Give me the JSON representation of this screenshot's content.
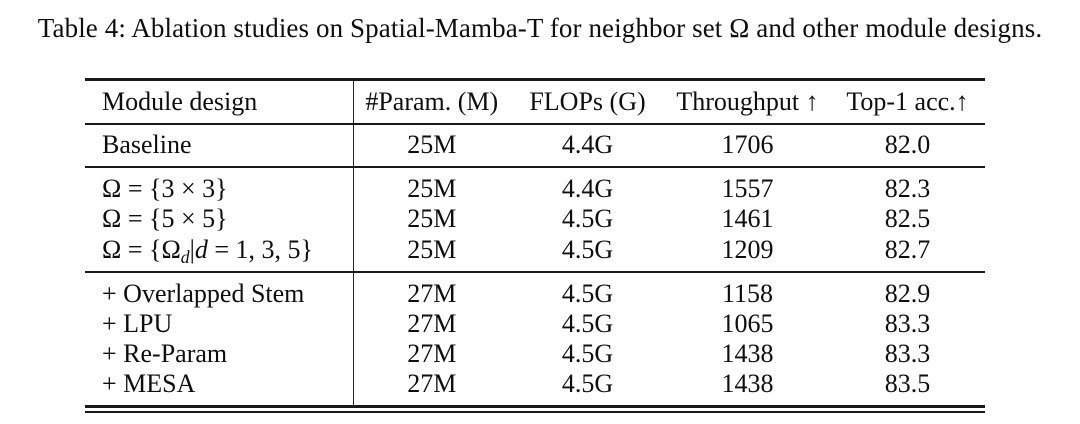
{
  "caption": "Table 4: Ablation studies on Spatial-Mamba-T for neighbor set Ω and other module designs.",
  "table": {
    "header": {
      "col1": "Module design",
      "col2": "#Param. (M)",
      "col3": "FLOPs (G)",
      "col4": "Throughput ↑",
      "col5": "Top-1 acc.↑"
    },
    "sections": [
      {
        "name": "baseline",
        "rows": [
          {
            "label": [
              {
                "t": "Baseline"
              }
            ],
            "cells": [
              "25M",
              "4.4G",
              "1706",
              "82.0"
            ]
          }
        ]
      },
      {
        "name": "neighbor-set",
        "rows": [
          {
            "label": [
              {
                "t": "Ω = {3 × 3}"
              }
            ],
            "cells": [
              "25M",
              "4.4G",
              "1557",
              "82.3"
            ]
          },
          {
            "label": [
              {
                "t": "Ω = {5 × 5}"
              }
            ],
            "cells": [
              "25M",
              "4.5G",
              "1461",
              "82.5"
            ]
          },
          {
            "label": [
              {
                "t": "Ω = {Ω"
              },
              {
                "t": "d",
                "s": "sub"
              },
              {
                "t": "|"
              },
              {
                "t": "d",
                "s": "it"
              },
              {
                "t": " = 1, 3, 5}"
              }
            ],
            "cells": [
              "25M",
              "4.5G",
              "1209",
              "82.7"
            ]
          }
        ]
      },
      {
        "name": "module-designs",
        "rows": [
          {
            "label": [
              {
                "t": "+ Overlapped Stem"
              }
            ],
            "cells": [
              "27M",
              "4.5G",
              "1158",
              "82.9"
            ]
          },
          {
            "label": [
              {
                "t": "+ LPU"
              }
            ],
            "cells": [
              "27M",
              "4.5G",
              "1065",
              "83.3"
            ]
          },
          {
            "label": [
              {
                "t": "+ Re-Param"
              }
            ],
            "cells": [
              "27M",
              "4.5G",
              "1438",
              "83.3"
            ]
          },
          {
            "label": [
              {
                "t": "+ MESA"
              }
            ],
            "cells": [
              "27M",
              "4.5G",
              "1438",
              "83.5"
            ]
          }
        ]
      }
    ]
  },
  "colors": {
    "text": "#0e0e0e",
    "rule": "#191919",
    "background": "#ffffff"
  }
}
